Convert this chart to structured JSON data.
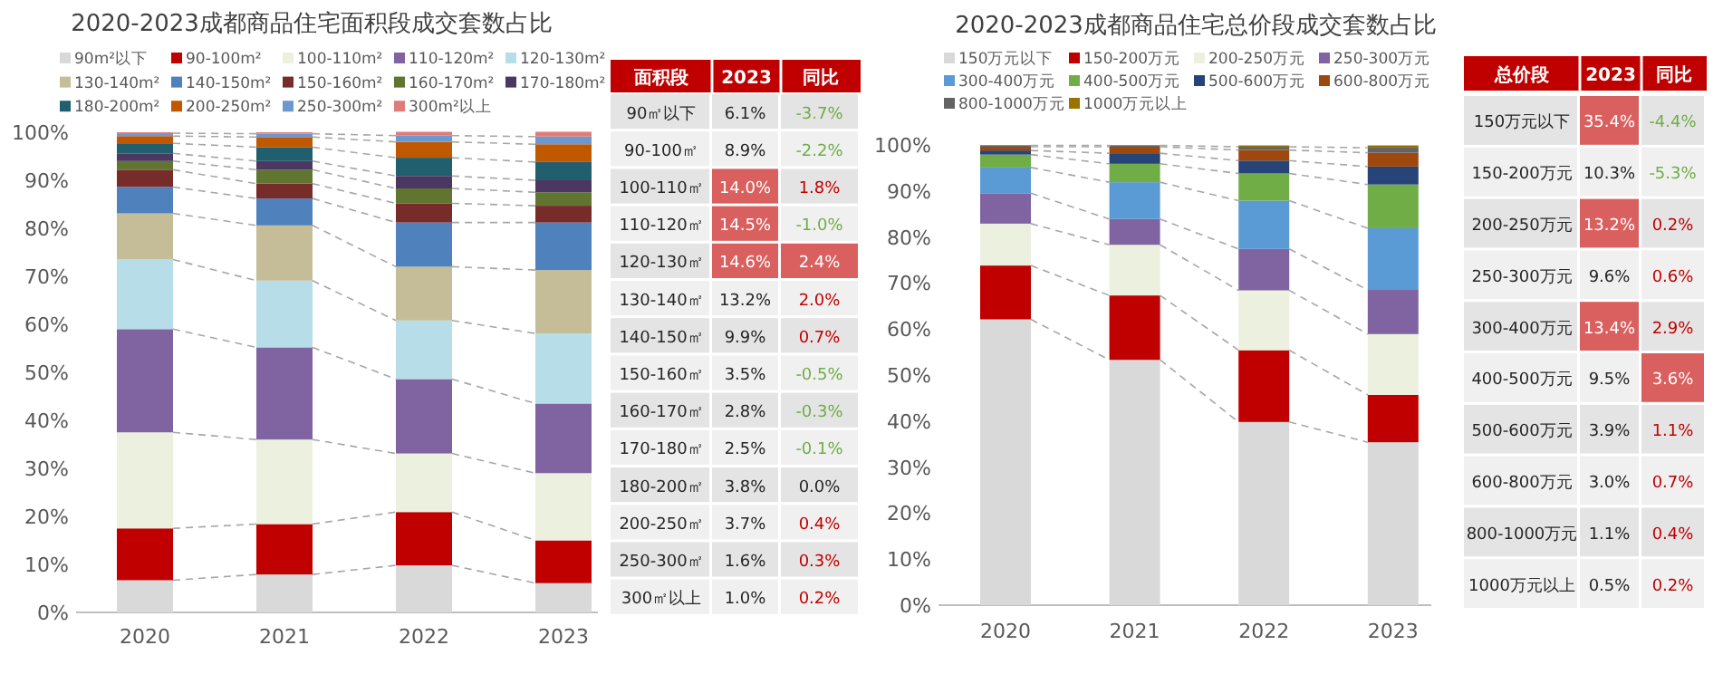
{
  "chart_data": [
    {
      "type": "bar",
      "stacked": true,
      "legend": "top",
      "title": "2020-2023成都商品住宅面积段成交套数占比",
      "categories": [
        "2020",
        "2021",
        "2022",
        "2023"
      ],
      "ylim": [
        0,
        100
      ],
      "yticks": [
        {
          "value": 0,
          "label": "0%"
        },
        {
          "value": 10,
          "label": "10%"
        },
        {
          "value": 20,
          "label": "20%"
        },
        {
          "value": 30,
          "label": "30%"
        },
        {
          "value": 40,
          "label": "40%"
        },
        {
          "value": 50,
          "label": "50%"
        },
        {
          "value": 60,
          "label": "60%"
        },
        {
          "value": 70,
          "label": "70%"
        },
        {
          "value": 80,
          "label": "80%"
        },
        {
          "value": 90,
          "label": "90%"
        },
        {
          "value": 100,
          "label": "100%"
        }
      ],
      "series": [
        {
          "name": "90m²以下",
          "color": "#d9d9d9",
          "values": [
            6.7,
            7.9,
            9.8,
            6.1
          ]
        },
        {
          "name": "90-100m²",
          "color": "#c00000",
          "values": [
            10.8,
            10.5,
            11.1,
            8.9
          ]
        },
        {
          "name": "100-110m²",
          "color": "#ebf1de",
          "values": [
            20.0,
            17.6,
            12.2,
            14.0
          ]
        },
        {
          "name": "110-120m²",
          "color": "#8064a2",
          "values": [
            21.5,
            19.2,
            15.5,
            14.5
          ]
        },
        {
          "name": "120-130m²",
          "color": "#b7dee8",
          "values": [
            14.5,
            13.9,
            12.2,
            14.6
          ]
        },
        {
          "name": "130-140m²",
          "color": "#c4bd97",
          "values": [
            9.6,
            11.5,
            11.2,
            13.2
          ]
        },
        {
          "name": "140-150m²",
          "color": "#4f81bd",
          "values": [
            5.5,
            5.6,
            9.2,
            9.9
          ]
        },
        {
          "name": "150-160m²",
          "color": "#772c2a",
          "values": [
            3.6,
            3.1,
            4.0,
            3.5
          ]
        },
        {
          "name": "160-170m²",
          "color": "#5f7530",
          "values": [
            1.8,
            2.9,
            3.1,
            2.8
          ]
        },
        {
          "name": "170-180m²",
          "color": "#4b3761",
          "values": [
            1.6,
            1.8,
            2.6,
            2.5
          ]
        },
        {
          "name": "180-200m²",
          "color": "#215f6e",
          "values": [
            2.1,
            2.9,
            3.8,
            3.8
          ]
        },
        {
          "name": "200-250m²",
          "color": "#c05800",
          "values": [
            1.5,
            2.1,
            3.3,
            3.7
          ]
        },
        {
          "name": "250-300m²",
          "color": "#6c97cf",
          "values": [
            0.6,
            0.7,
            1.3,
            1.6
          ]
        },
        {
          "name": "300m²以上",
          "color": "#e07b7b",
          "values": [
            0.2,
            0.3,
            0.8,
            1.0
          ]
        }
      ]
    },
    {
      "type": "heatmap",
      "ylabel": "面积段",
      "categories": [
        "2023",
        "同比"
      ],
      "y_categories": [
        "90㎡以下",
        "90-100㎡",
        "100-110㎡",
        "110-120㎡",
        "120-130㎡",
        "130-140㎡",
        "140-150㎡",
        "150-160㎡",
        "160-170㎡",
        "170-180㎡",
        "180-200㎡",
        "200-250㎡",
        "250-300㎡",
        "300㎡以上"
      ],
      "cells": [
        [
          6.1,
          -3.7
        ],
        [
          8.9,
          -2.2
        ],
        [
          14.0,
          1.8
        ],
        [
          14.5,
          -1.0
        ],
        [
          14.6,
          2.4
        ],
        [
          13.2,
          2.0
        ],
        [
          9.9,
          0.7
        ],
        [
          3.5,
          -0.5
        ],
        [
          2.8,
          -0.3
        ],
        [
          2.5,
          -0.1
        ],
        [
          3.8,
          0.0
        ],
        [
          3.7,
          0.4
        ],
        [
          1.6,
          0.3
        ],
        [
          1.0,
          0.2
        ]
      ],
      "cell_labels": [
        [
          "6.1%",
          "-3.7%"
        ],
        [
          "8.9%",
          "-2.2%"
        ],
        [
          "14.0%",
          "1.8%"
        ],
        [
          "14.5%",
          "-1.0%"
        ],
        [
          "14.6%",
          "2.4%"
        ],
        [
          "13.2%",
          "2.0%"
        ],
        [
          "9.9%",
          "0.7%"
        ],
        [
          "3.5%",
          "-0.5%"
        ],
        [
          "2.8%",
          "-0.3%"
        ],
        [
          "2.5%",
          "-0.1%"
        ],
        [
          "3.8%",
          "0.0%"
        ],
        [
          "3.7%",
          "0.4%"
        ],
        [
          "1.6%",
          "0.3%"
        ],
        [
          "1.0%",
          "0.2%"
        ]
      ]
    },
    {
      "type": "bar",
      "stacked": true,
      "legend": "top",
      "title": "2020-2023成都商品住宅总价段成交套数占比",
      "categories": [
        "2020",
        "2021",
        "2022",
        "2023"
      ],
      "ylim": [
        0,
        100
      ],
      "yticks": [
        {
          "value": 0,
          "label": "0%"
        },
        {
          "value": 10,
          "label": "10%"
        },
        {
          "value": 20,
          "label": "20%"
        },
        {
          "value": 30,
          "label": "30%"
        },
        {
          "value": 40,
          "label": "40%"
        },
        {
          "value": 50,
          "label": "50%"
        },
        {
          "value": 60,
          "label": "60%"
        },
        {
          "value": 70,
          "label": "70%"
        },
        {
          "value": 80,
          "label": "80%"
        },
        {
          "value": 90,
          "label": "90%"
        },
        {
          "value": 100,
          "label": "100%"
        }
      ],
      "series": [
        {
          "name": "150万元以下",
          "color": "#d9d9d9",
          "values": [
            62.1,
            53.3,
            39.8,
            35.4
          ]
        },
        {
          "name": "150-200万元",
          "color": "#c00000",
          "values": [
            11.7,
            14.0,
            15.6,
            10.3
          ]
        },
        {
          "name": "200-250万元",
          "color": "#ebf1de",
          "values": [
            9.1,
            11.0,
            13.0,
            13.2
          ]
        },
        {
          "name": "250-300万元",
          "color": "#8064a2",
          "values": [
            6.6,
            5.6,
            9.0,
            9.6
          ]
        },
        {
          "name": "300-400万元",
          "color": "#5b9bd5",
          "values": [
            5.6,
            8.0,
            10.5,
            13.4
          ]
        },
        {
          "name": "400-500万元",
          "color": "#70ad47",
          "values": [
            2.8,
            4.0,
            5.9,
            9.5
          ]
        },
        {
          "name": "500-600万元",
          "color": "#264478",
          "values": [
            0.9,
            2.3,
            2.8,
            3.9
          ]
        },
        {
          "name": "600-800万元",
          "color": "#9e480e",
          "values": [
            0.8,
            1.4,
            2.3,
            3.0
          ]
        },
        {
          "name": "800-1000万元",
          "color": "#636363",
          "values": [
            0.3,
            0.3,
            0.7,
            1.1
          ]
        },
        {
          "name": "1000万元以上",
          "color": "#997300",
          "values": [
            0.1,
            0.1,
            0.3,
            0.5
          ]
        }
      ]
    },
    {
      "type": "heatmap",
      "ylabel": "总价段",
      "categories": [
        "2023",
        "同比"
      ],
      "y_categories": [
        "150万元以下",
        "150-200万元",
        "200-250万元",
        "250-300万元",
        "300-400万元",
        "400-500万元",
        "500-600万元",
        "600-800万元",
        "800-1000万元",
        "1000万元以上"
      ],
      "cells": [
        [
          35.4,
          -4.4
        ],
        [
          10.3,
          -5.3
        ],
        [
          13.2,
          0.2
        ],
        [
          9.6,
          0.6
        ],
        [
          13.4,
          2.9
        ],
        [
          9.5,
          3.6
        ],
        [
          3.9,
          1.1
        ],
        [
          3.0,
          0.7
        ],
        [
          1.1,
          0.4
        ],
        [
          0.5,
          0.2
        ]
      ],
      "cell_labels": [
        [
          "35.4%",
          "-4.4%"
        ],
        [
          "10.3%",
          "-5.3%"
        ],
        [
          "13.2%",
          "0.2%"
        ],
        [
          "9.6%",
          "0.6%"
        ],
        [
          "13.4%",
          "2.9%"
        ],
        [
          "9.5%",
          "3.6%"
        ],
        [
          "3.9%",
          "1.1%"
        ],
        [
          "3.0%",
          "0.7%"
        ],
        [
          "1.1%",
          "0.4%"
        ],
        [
          "0.5%",
          "0.2%"
        ]
      ]
    }
  ]
}
